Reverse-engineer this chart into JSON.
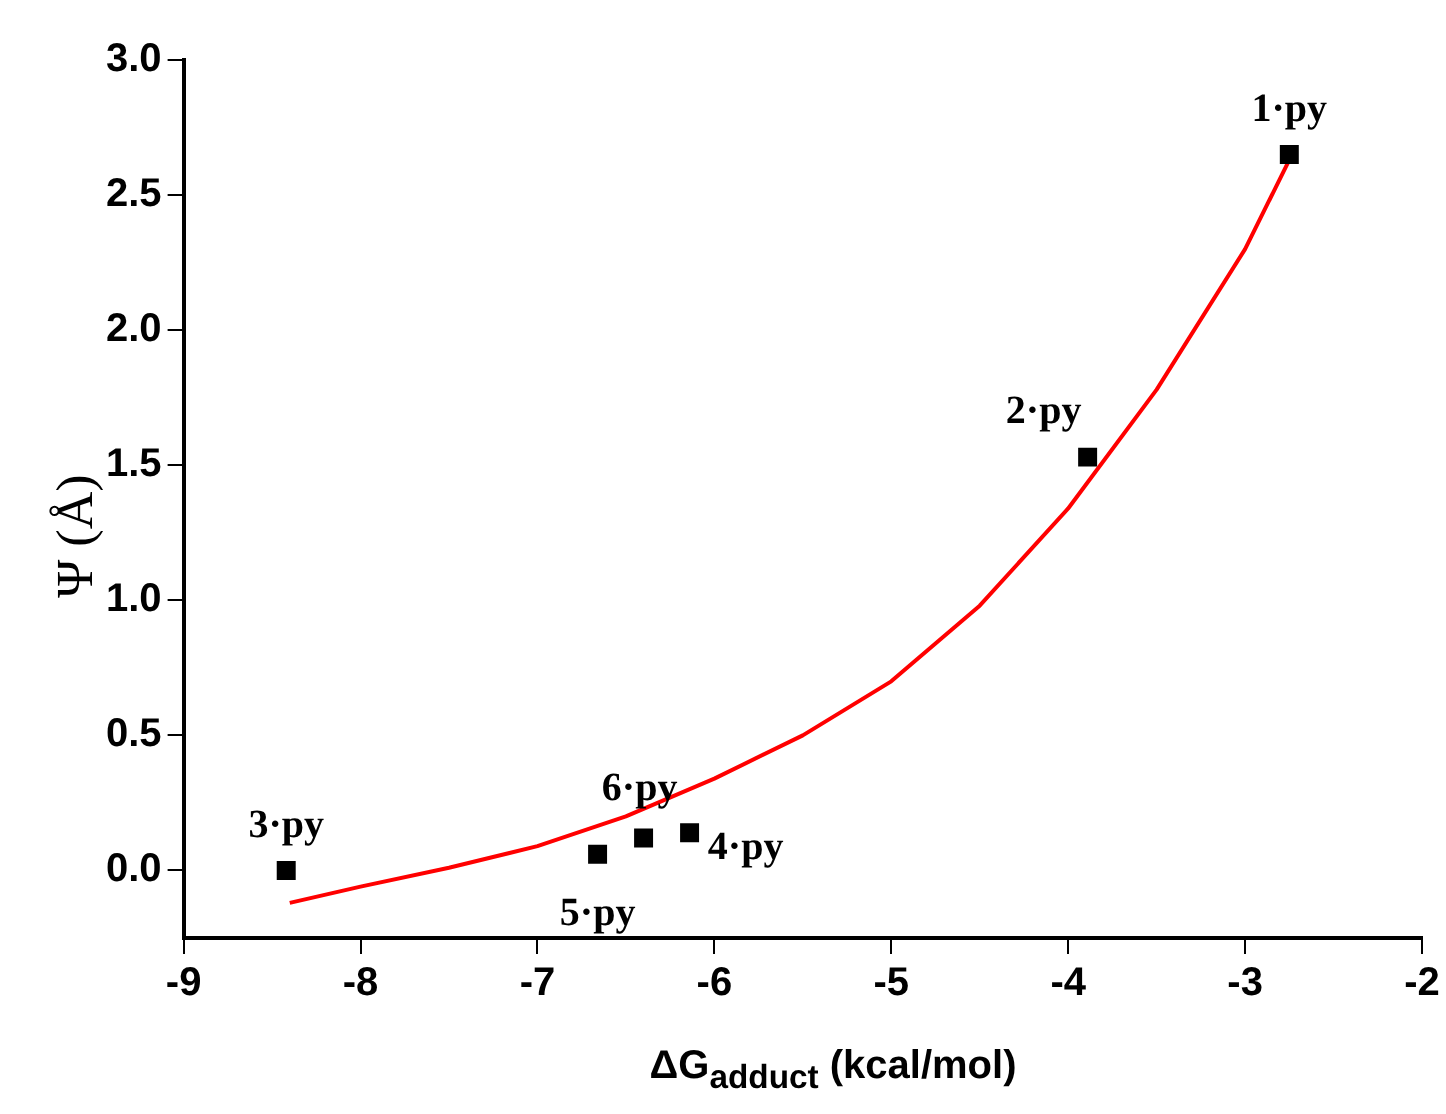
{
  "chart_data": {
    "type": "scatter",
    "xlabel": "ΔG$_{adduct}$ (kcal/mol)",
    "ylabel": "Ψ (Å)",
    "xlim": [
      -9,
      -2
    ],
    "xticks": [
      -9,
      -8,
      -7,
      -6,
      -5,
      -4,
      -3,
      -2
    ],
    "ylim": [
      -0.25,
      3.0
    ],
    "yticks": [
      {
        "value": 0,
        "label": "0.0"
      },
      0.5,
      {
        "value": 1,
        "label": "1.0"
      },
      1.5,
      {
        "value": 2,
        "label": "2.0"
      },
      2.5,
      {
        "value": 3,
        "label": "3.0"
      }
    ],
    "grid": false,
    "legend": false,
    "series": [
      {
        "marker": "square",
        "color": "#000000",
        "x": [
          -2.75,
          -3.89,
          -8.42,
          -6.14,
          -6.66,
          -6.4
        ],
        "values": [
          2.65,
          1.53,
          0.0,
          0.14,
          0.06,
          0.12
        ]
      },
      {
        "type": "line",
        "marker": "none",
        "color": "#ff0000",
        "x": [
          -8.4,
          -8,
          -7.5,
          -7,
          -6.5,
          -6,
          -5.5,
          -5,
          -4.5,
          -4,
          -3.5,
          -3,
          -2.75
        ],
        "values": [
          -0.12,
          -0.06,
          0.01,
          0.09,
          0.2,
          0.34,
          0.5,
          0.7,
          0.98,
          1.34,
          1.78,
          2.3,
          2.63
        ]
      }
    ],
    "annotations": [
      {
        "text": "1·py",
        "x": -2.75,
        "y": 2.65
      },
      {
        "text": "2·py",
        "x": -3.89,
        "y": 1.53
      },
      {
        "text": "3·py",
        "x": -8.42,
        "y": 0.0
      },
      {
        "text": "4·py",
        "x": -6.14,
        "y": 0.14
      },
      {
        "text": "5·py",
        "x": -6.66,
        "y": 0.06
      },
      {
        "text": "6·py",
        "x": -6.4,
        "y": 0.12
      }
    ]
  }
}
